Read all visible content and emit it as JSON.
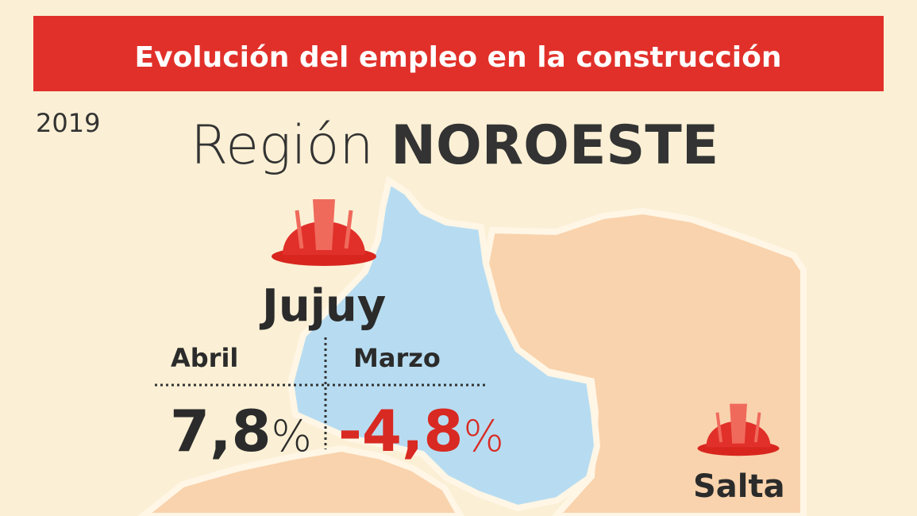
{
  "header": {
    "title": "Evolución del empleo en la construcción"
  },
  "year": "2019",
  "region": {
    "prefix": "Región",
    "name": "NOROESTE"
  },
  "provinces": [
    {
      "name": "Jujuy",
      "stats": [
        {
          "month": "Abril",
          "value": "7,8",
          "unit": "%"
        },
        {
          "month": "Marzo",
          "value": "-4,8",
          "unit": "%"
        }
      ]
    },
    {
      "name": "Salta"
    }
  ]
}
